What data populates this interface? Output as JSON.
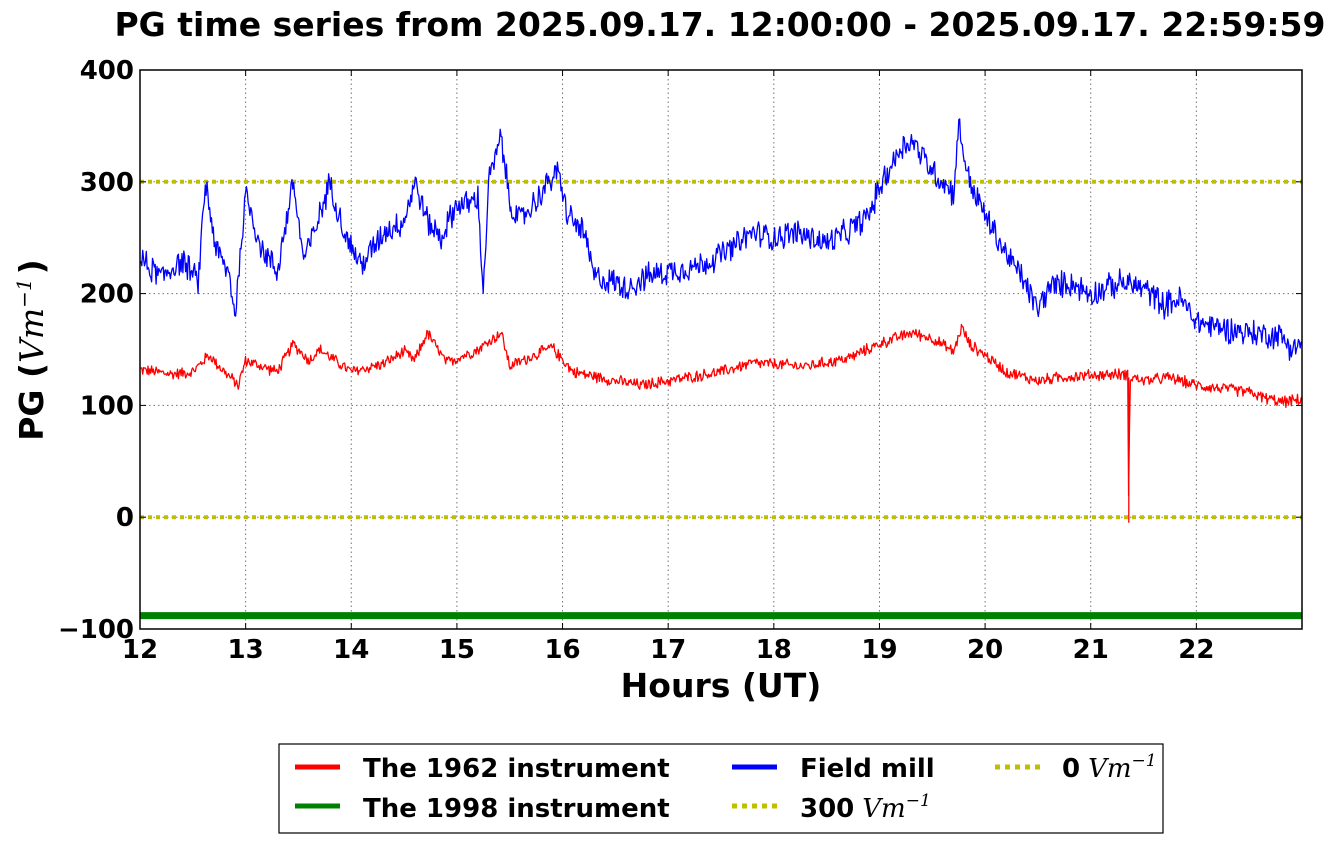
{
  "chart_data": {
    "type": "line",
    "title": "PG time series from 2025.09.17. 12:00:00 - 2025.09.17. 22:59:59",
    "xlabel": "Hours (UT)",
    "ylabel": {
      "prefix": "PG (",
      "unit_base": "Vm",
      "unit_exp": "−1",
      "suffix": ")"
    },
    "xlim": [
      12,
      23
    ],
    "ylim": [
      -100,
      400
    ],
    "x_ticks": [
      "12",
      "13",
      "14",
      "15",
      "16",
      "17",
      "18",
      "19",
      "20",
      "21",
      "22"
    ],
    "y_ticks": [
      "−100",
      "0",
      "100",
      "200",
      "300",
      "400"
    ],
    "grid": true,
    "legend_position": "bottom-center, below plot",
    "series": [
      {
        "name": "The 1962 instrument",
        "color": "#ff0000",
        "style": "solid",
        "x": [
          12.0,
          12.3,
          12.5,
          12.65,
          12.8,
          12.93,
          13.0,
          13.3,
          13.45,
          13.6,
          13.7,
          14.0,
          14.3,
          14.5,
          14.6,
          14.72,
          14.9,
          15.2,
          15.42,
          15.5,
          15.9,
          16.1,
          16.5,
          16.75,
          17.0,
          17.5,
          17.8,
          18.3,
          18.7,
          19.0,
          19.3,
          19.5,
          19.7,
          19.78,
          19.85,
          20.0,
          20.2,
          20.5,
          20.7,
          21.0,
          21.35,
          21.36,
          21.37,
          21.38,
          21.5,
          21.75,
          22.0,
          22.5,
          22.6,
          22.8,
          23.0
        ],
        "y": [
          132,
          128,
          130,
          145,
          130,
          118,
          140,
          130,
          155,
          140,
          150,
          130,
          137,
          148,
          140,
          165,
          138,
          150,
          165,
          135,
          152,
          130,
          122,
          118,
          122,
          130,
          138,
          135,
          142,
          155,
          165,
          160,
          148,
          170,
          155,
          145,
          130,
          122,
          125,
          127,
          128,
          -5,
          125,
          126,
          122,
          125,
          118,
          112,
          108,
          103,
          105
        ]
      },
      {
        "name": "The 1998 instrument",
        "color": "#008000",
        "style": "thick",
        "x": [
          12,
          23
        ],
        "y": [
          -88,
          -88
        ]
      },
      {
        "name": "Field mill",
        "color": "#0000ff",
        "style": "solid",
        "x": [
          12.0,
          12.2,
          12.4,
          12.55,
          12.62,
          12.72,
          12.85,
          12.9,
          13.0,
          13.15,
          13.3,
          13.45,
          13.55,
          13.65,
          13.8,
          13.95,
          14.1,
          14.3,
          14.5,
          14.6,
          14.72,
          14.85,
          15.0,
          15.1,
          15.2,
          15.25,
          15.3,
          15.42,
          15.5,
          15.6,
          15.8,
          15.95,
          16.05,
          16.2,
          16.3,
          16.5,
          16.6,
          16.8,
          17.0,
          17.3,
          17.6,
          17.8,
          18.0,
          18.2,
          18.5,
          18.7,
          18.9,
          19.0,
          19.2,
          19.3,
          19.5,
          19.6,
          19.7,
          19.75,
          19.85,
          20.0,
          20.2,
          20.35,
          20.5,
          20.6,
          20.8,
          21.0,
          21.3,
          21.5,
          21.7,
          21.85,
          22.0,
          22.2,
          22.5,
          22.8,
          22.9,
          23.0
        ],
        "y": [
          230,
          215,
          230,
          210,
          300,
          240,
          215,
          180,
          290,
          240,
          220,
          300,
          230,
          255,
          300,
          250,
          225,
          255,
          265,
          300,
          265,
          250,
          280,
          280,
          285,
          200,
          300,
          340,
          280,
          265,
          290,
          310,
          270,
          255,
          215,
          210,
          205,
          215,
          220,
          225,
          240,
          255,
          250,
          255,
          245,
          255,
          270,
          295,
          330,
          338,
          310,
          300,
          290,
          350,
          300,
          270,
          235,
          215,
          185,
          205,
          210,
          200,
          210,
          205,
          190,
          195,
          175,
          170,
          165,
          162,
          152,
          155
        ]
      },
      {
        "name": "300 Vm⁻¹",
        "color": "#bfbf00",
        "style": "dotted",
        "x": [
          12,
          23
        ],
        "y": [
          300,
          300
        ]
      },
      {
        "name": "0 Vm⁻¹",
        "color": "#bfbf00",
        "style": "dotted",
        "x": [
          12,
          23
        ],
        "y": [
          0,
          0
        ]
      }
    ],
    "legend": [
      {
        "label": "The 1962 instrument",
        "color": "#ff0000",
        "style": "solid"
      },
      {
        "label": "The 1998 instrument",
        "color": "#008000",
        "style": "solid"
      },
      {
        "label": "Field mill",
        "color": "#0000ff",
        "style": "solid"
      },
      {
        "label": "300",
        "unit_base": "Vm",
        "unit_exp": "−1",
        "color": "#bfbf00",
        "style": "dotted"
      },
      {
        "label": "0",
        "unit_base": "Vm",
        "unit_exp": "−1",
        "color": "#bfbf00",
        "style": "dotted"
      }
    ]
  }
}
